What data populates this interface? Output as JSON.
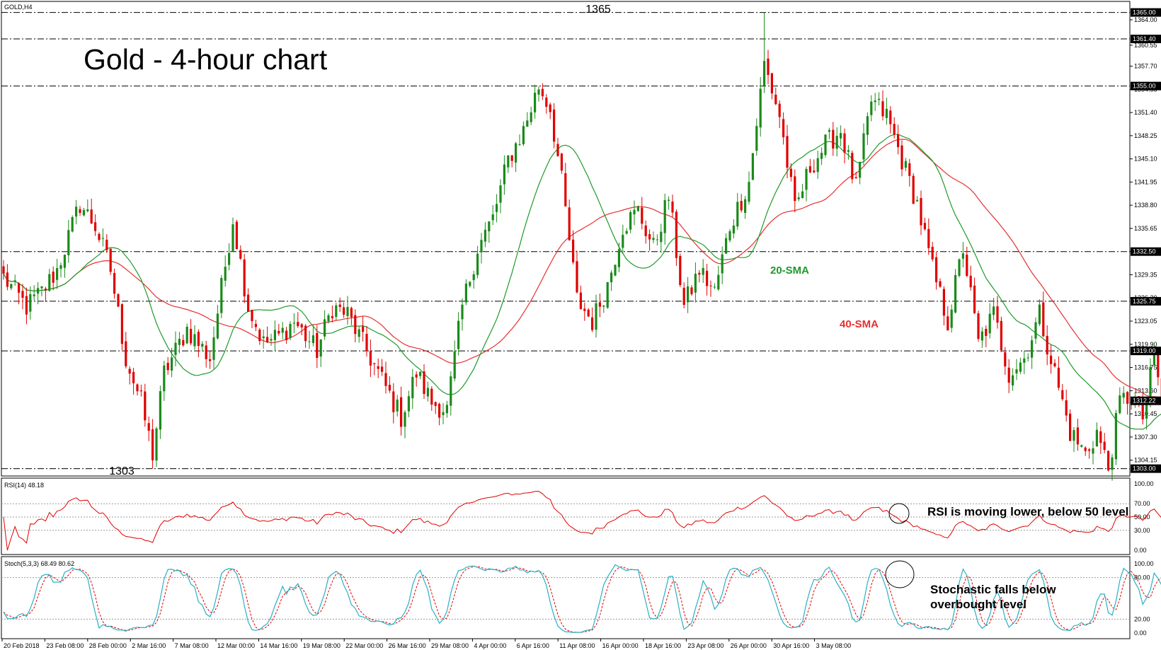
{
  "chart_data": [
    {
      "type": "candlestick",
      "symbol_label": "GOLD,H4",
      "title": "Gold - 4-hour chart",
      "xlabels": [
        "20 Feb 2018",
        "23 Feb 08:00",
        "28 Feb 00:00",
        "2 Mar 16:00",
        "7 Mar 08:00",
        "12 Mar 00:00",
        "14 Mar 16:00",
        "19 Mar 08:00",
        "22 Mar 00:00",
        "26 Mar 16:00",
        "29 Mar 08:00",
        "4 Apr 00:00",
        "6 Apr 16:00",
        "11 Apr 08:00",
        "16 Apr 00:00",
        "18 Apr 16:00",
        "23 Apr 08:00",
        "26 Apr 00:00",
        "30 Apr 16:00",
        "3 May 08:00"
      ],
      "y_ticks": [
        "1364.00",
        "1360.55",
        "1357.70",
        "1354.55",
        "1351.40",
        "1348.25",
        "1345.10",
        "1341.95",
        "1338.80",
        "1335.65",
        "1332.50",
        "1329.35",
        "1326.20",
        "1323.05",
        "1319.90",
        "1316.75",
        "1313.60",
        "1310.45",
        "1307.30",
        "1304.15"
      ],
      "ylim": [
        1302.0,
        1366.5
      ],
      "levels": [
        {
          "value": 1365.0,
          "label": "1365.00"
        },
        {
          "value": 1361.4,
          "label": "1361.40"
        },
        {
          "value": 1355.0,
          "label": "1355.00"
        },
        {
          "value": 1332.5,
          "label": "1332.50"
        },
        {
          "value": 1325.75,
          "label": "1325.75"
        },
        {
          "value": 1319.0,
          "label": "1319.00"
        },
        {
          "value": 1303.0,
          "label": "1303.00"
        }
      ],
      "current_price": {
        "value": 1312.22,
        "label": "1312.22"
      },
      "annotations": [
        {
          "text": "1365",
          "price": 1365.0,
          "bar_index": 199
        },
        {
          "text": "1303",
          "price": 1303.0,
          "bar_index": 39
        },
        {
          "text": "20-SMA",
          "price": 1329.5
        },
        {
          "text": "40-SMA",
          "price": 1322.2
        }
      ],
      "anchors": [
        [
          0,
          1329.0
        ],
        [
          6,
          1325.0
        ],
        [
          10,
          1327.0
        ],
        [
          14,
          1330.0
        ],
        [
          20,
          1339.0
        ],
        [
          24,
          1336.0
        ],
        [
          28,
          1330.0
        ],
        [
          32,
          1318.0
        ],
        [
          36,
          1312.0
        ],
        [
          39,
          1305.0
        ],
        [
          42,
          1316.0
        ],
        [
          48,
          1322.0
        ],
        [
          54,
          1318.0
        ],
        [
          60,
          1337.0
        ],
        [
          64,
          1325.0
        ],
        [
          68,
          1320.0
        ],
        [
          72,
          1321.0
        ],
        [
          76,
          1323.0
        ],
        [
          82,
          1319.0
        ],
        [
          86,
          1325.0
        ],
        [
          90,
          1324.0
        ],
        [
          96,
          1318.0
        ],
        [
          100,
          1314.0
        ],
        [
          104,
          1310.0
        ],
        [
          108,
          1316.0
        ],
        [
          112,
          1312.0
        ],
        [
          116,
          1311.0
        ],
        [
          120,
          1325.0
        ],
        [
          124,
          1333.0
        ],
        [
          128,
          1337.0
        ],
        [
          132,
          1345.0
        ],
        [
          136,
          1349.0
        ],
        [
          140,
          1355.0
        ],
        [
          143,
          1352.0
        ],
        [
          146,
          1342.0
        ],
        [
          150,
          1326.0
        ],
        [
          154,
          1323.0
        ],
        [
          158,
          1328.0
        ],
        [
          162,
          1336.0
        ],
        [
          166,
          1338.0
        ],
        [
          170,
          1333.0
        ],
        [
          174,
          1340.0
        ],
        [
          178,
          1325.0
        ],
        [
          182,
          1330.0
        ],
        [
          186,
          1327.0
        ],
        [
          190,
          1336.0
        ],
        [
          195,
          1342.0
        ],
        [
          199,
          1358.0
        ],
        [
          203,
          1351.0
        ],
        [
          207,
          1338.0
        ],
        [
          211,
          1344.0
        ],
        [
          215,
          1347.0
        ],
        [
          219,
          1349.0
        ],
        [
          223,
          1341.0
        ],
        [
          227,
          1353.0
        ],
        [
          231,
          1351.0
        ],
        [
          235,
          1345.0
        ],
        [
          239,
          1339.0
        ],
        [
          243,
          1330.0
        ],
        [
          247,
          1323.0
        ],
        [
          251,
          1333.0
        ],
        [
          255,
          1320.0
        ],
        [
          259,
          1324.0
        ],
        [
          263,
          1316.0
        ],
        [
          267,
          1318.0
        ],
        [
          271,
          1324.0
        ],
        [
          275,
          1316.0
        ],
        [
          279,
          1308.0
        ],
        [
          283,
          1305.0
        ],
        [
          286,
          1308.0
        ],
        [
          289,
          1303.0
        ],
        [
          292,
          1312.0
        ],
        [
          295,
          1313.0
        ],
        [
          298,
          1310.0
        ],
        [
          301,
          1318.0
        ],
        [
          303,
          1313.0
        ]
      ]
    },
    {
      "type": "line",
      "label": "RSI(14) 48.18",
      "ylim": [
        0,
        100
      ],
      "y_ticks": [
        "100.00",
        "70.00",
        "50.00",
        "30.00",
        "0.00"
      ],
      "levels": [
        70,
        50,
        30
      ],
      "note": "RSI is moving lower, below 50 level"
    },
    {
      "type": "line",
      "label": "Stoch(5,3,3) 68.49 80.62",
      "ylim": [
        0,
        100
      ],
      "y_ticks": [
        "100.00",
        "80.00",
        "20.00",
        "0.00"
      ],
      "levels": [
        80,
        20
      ],
      "note_lines": [
        "Stochastic falls below",
        "overbought level"
      ]
    }
  ],
  "colors": {
    "up": "#1a8a1a",
    "down": "#e00000",
    "sma20": "#1f9a2a",
    "sma40": "#e63030",
    "rsi": "#e00000",
    "stoch_main": "#2ab0c4",
    "stoch_signal": "#e00000",
    "tag_bg": "#000000"
  }
}
